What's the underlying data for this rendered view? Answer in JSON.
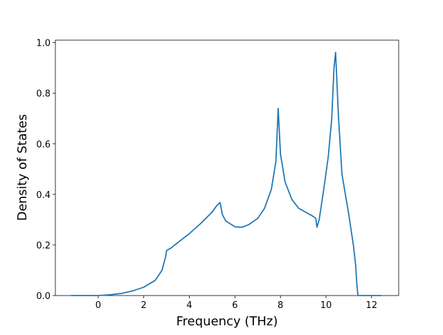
{
  "chart_data": {
    "type": "line",
    "xlabel": "Frequency (THz)",
    "ylabel": "Density of States",
    "x": [
      -1.2,
      0,
      0.5,
      1,
      1.5,
      2,
      2.5,
      2.8,
      2.95,
      3.0,
      3.2,
      3.5,
      4,
      4.5,
      5,
      5.2,
      5.35,
      5.45,
      5.6,
      6.0,
      6.3,
      6.6,
      7.0,
      7.3,
      7.6,
      7.8,
      7.9,
      8.0,
      8.2,
      8.5,
      8.8,
      9.0,
      9.4,
      9.55,
      9.6,
      9.7,
      9.9,
      10.1,
      10.25,
      10.35,
      10.42,
      10.55,
      10.7,
      11.0,
      11.2,
      11.3,
      11.35,
      11.4,
      12.45
    ],
    "series": [
      {
        "color": "#1f77b4",
        "values": [
          0,
          0,
          0.003,
          0.008,
          0.018,
          0.033,
          0.06,
          0.1,
          0.15,
          0.178,
          0.188,
          0.21,
          0.245,
          0.285,
          0.33,
          0.355,
          0.368,
          0.32,
          0.295,
          0.272,
          0.27,
          0.28,
          0.305,
          0.345,
          0.42,
          0.53,
          0.74,
          0.56,
          0.45,
          0.38,
          0.345,
          0.335,
          0.315,
          0.305,
          0.27,
          0.3,
          0.42,
          0.55,
          0.7,
          0.9,
          0.962,
          0.7,
          0.48,
          0.32,
          0.2,
          0.12,
          0.05,
          0,
          0
        ]
      }
    ],
    "xlim": [
      -1.88,
      13.19
    ],
    "ylim": [
      0,
      1.01
    ],
    "xticks": [
      0,
      2,
      4,
      6,
      8,
      10,
      12
    ],
    "yticks": [
      {
        "value": 0,
        "label": "0.0"
      },
      0.2,
      0.4,
      0.6,
      0.8,
      {
        "value": 1,
        "label": "1.0"
      }
    ]
  }
}
